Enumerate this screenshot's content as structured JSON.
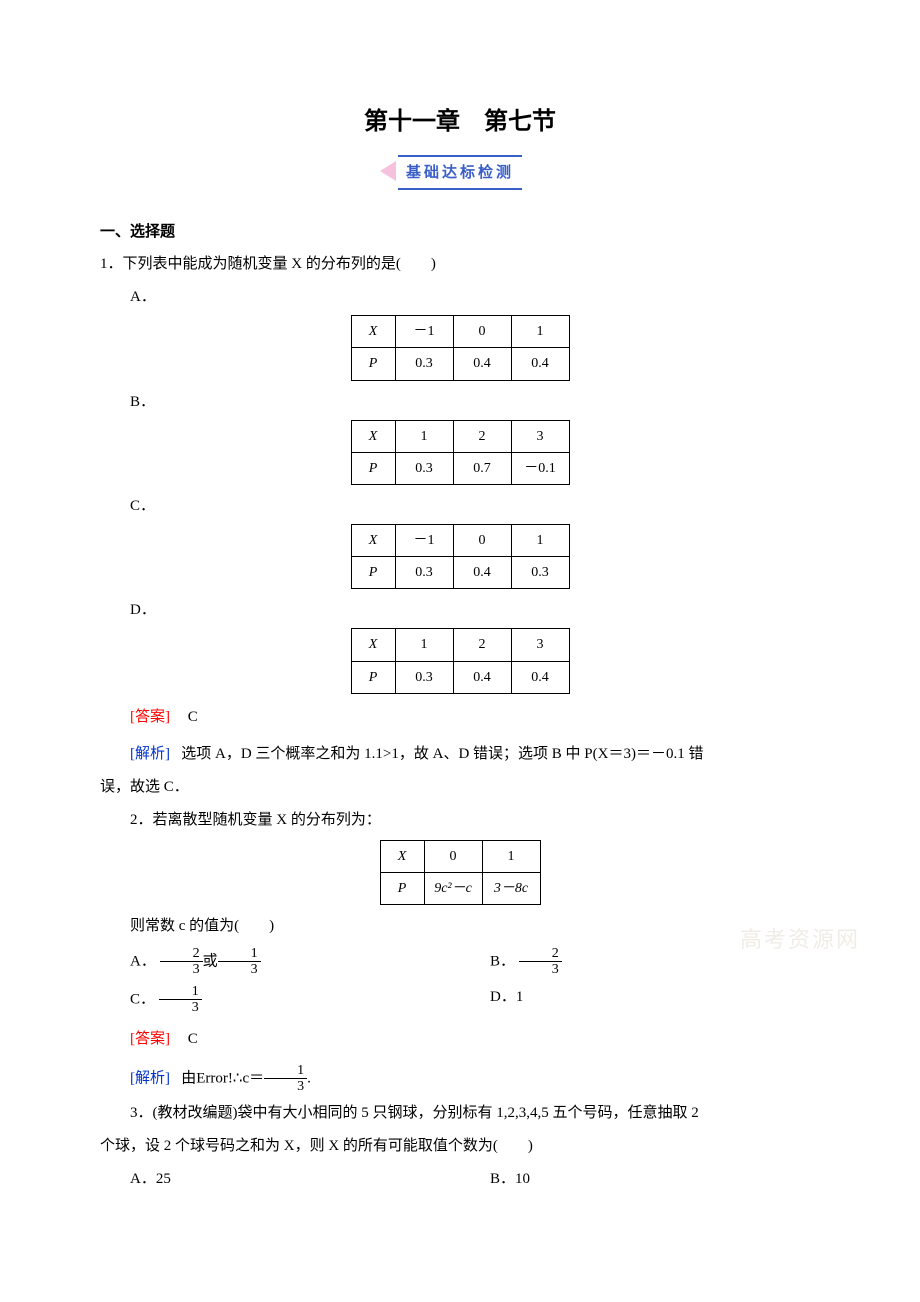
{
  "chapter_title": "第十一章　第七节",
  "banner_text": "基础达标检测",
  "section_header": "一、选择题",
  "q1": {
    "stem": "1．下列表中能成为随机变量 X 的分布列的是(　　)",
    "opts": {
      "A": "A．",
      "B": "B．",
      "C": "C．",
      "D": "D．"
    },
    "tables": {
      "A": {
        "x": [
          "－1",
          "0",
          "1"
        ],
        "p": [
          "0.3",
          "0.4",
          "0.4"
        ]
      },
      "B": {
        "x": [
          "1",
          "2",
          "3"
        ],
        "p": [
          "0.3",
          "0.7",
          "－0.1"
        ]
      },
      "C": {
        "x": [
          "－1",
          "0",
          "1"
        ],
        "p": [
          "0.3",
          "0.4",
          "0.3"
        ]
      },
      "D": {
        "x": [
          "1",
          "2",
          "3"
        ],
        "p": [
          "0.3",
          "0.4",
          "0.4"
        ]
      }
    },
    "hdr_x": "X",
    "hdr_p": "P",
    "answer_label": "[答案]",
    "answer_val": "C",
    "analysis_label": "[解析]",
    "analysis_text_1": "选项 A，D 三个概率之和为 1.1>1，故 A、D 错误；选项 B 中 P(X＝3)＝－0.1 错",
    "analysis_text_2": "误，故选 C．"
  },
  "q2": {
    "stem": "2．若离散型随机变量 X 的分布列为：",
    "hdr_x": "X",
    "hdr_p": "P",
    "table": {
      "x": [
        "0",
        "1"
      ],
      "p0": "9c²－c",
      "p1": "3－8c"
    },
    "tail": "则常数 c 的值为(　　)",
    "optA_pre": "A．",
    "optA_or": "或",
    "optB_pre": "B．",
    "optC_pre": "C．",
    "optD": "D．1",
    "frac_2_3": {
      "n": "2",
      "d": "3"
    },
    "frac_1_3": {
      "n": "1",
      "d": "3"
    },
    "answer_label": "[答案]",
    "answer_val": "C",
    "analysis_label": "[解析]",
    "analysis_pre": "由",
    "analysis_err": "Error!",
    "analysis_mid1": "∴c＝",
    "analysis_mid2": "."
  },
  "q3": {
    "stem_1": "3．(教材改编题)袋中有大小相同的 5 只钢球，分别标有 1,2,3,4,5 五个号码，任意抽取 2",
    "stem_2": "个球，设 2 个球号码之和为 X，则 X 的所有可能取值个数为(　　)",
    "optA": "A．25",
    "optB": "B．10"
  },
  "watermark": "高考资源网",
  "colors": {
    "red": "#ff0000",
    "blue": "#0033cc",
    "banner_blue": "#3a5fc8",
    "banner_pink": "#f6c1dc"
  }
}
